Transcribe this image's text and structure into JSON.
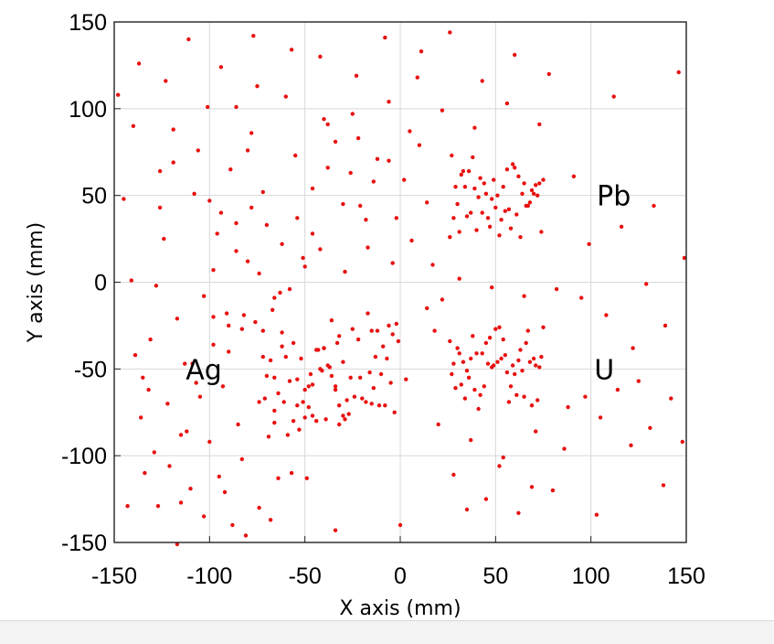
{
  "chart_data": {
    "type": "scatter",
    "title": "",
    "xlabel": "X axis (mm)",
    "ylabel": "Y axis (mm)",
    "xlim": [
      -150,
      150
    ],
    "ylim": [
      -150,
      150
    ],
    "xticks": [
      -150,
      -100,
      -50,
      0,
      50,
      100,
      150
    ],
    "yticks": [
      -150,
      -100,
      -50,
      0,
      50,
      100,
      150
    ],
    "grid": true,
    "marker_color": "#e81010",
    "annotations": [
      {
        "text": "Pb",
        "x": 112,
        "y": 50
      },
      {
        "text": "Ag",
        "x": -103,
        "y": -50
      },
      {
        "text": "U",
        "x": 107,
        "y": -50
      }
    ],
    "clusters": [
      {
        "label": "Pb",
        "center": [
          50,
          50
        ],
        "extent": [
          [
            25,
            25
          ],
          [
            75,
            75
          ]
        ]
      },
      {
        "label": "U",
        "center": [
          50,
          -45
        ],
        "extent": [
          [
            25,
            -75
          ],
          [
            75,
            -25
          ]
        ]
      },
      {
        "label": "Ag",
        "center": [
          -45,
          -50
        ],
        "extent": [
          [
            -75,
            -85
          ],
          [
            -25,
            -25
          ]
        ]
      }
    ],
    "points": [
      [
        -148,
        108
      ],
      [
        -143,
        -129
      ],
      [
        -141,
        1
      ],
      [
        -139,
        -42
      ],
      [
        -136,
        -78
      ],
      [
        -134,
        -110
      ],
      [
        -131,
        -33
      ],
      [
        -129,
        -98
      ],
      [
        -127,
        -129
      ],
      [
        -126,
        43
      ],
      [
        -124,
        25
      ],
      [
        -122,
        -70
      ],
      [
        -121,
        -106
      ],
      [
        -119,
        69
      ],
      [
        -117,
        -21
      ],
      [
        -115,
        -127
      ],
      [
        -113,
        -47
      ],
      [
        -112,
        -86
      ],
      [
        -110,
        -119
      ],
      [
        -108,
        51
      ],
      [
        -107,
        -58
      ],
      [
        -105,
        -66
      ],
      [
        -103,
        -8
      ],
      [
        -101,
        101
      ],
      [
        -100,
        -92
      ],
      [
        -98,
        7
      ],
      [
        -96,
        28
      ],
      [
        -95,
        -112
      ],
      [
        -93,
        -60
      ],
      [
        -91,
        -18
      ],
      [
        -90,
        -40
      ],
      [
        -88,
        -140
      ],
      [
        -86,
        101
      ],
      [
        -85,
        -82
      ],
      [
        -83,
        -27
      ],
      [
        -81,
        -146
      ],
      [
        -80,
        76
      ],
      [
        -78,
        86
      ],
      [
        -76,
        -23
      ],
      [
        -74,
        -130
      ],
      [
        -72,
        -43
      ],
      [
        -71,
        -67
      ],
      [
        -69,
        -89
      ],
      [
        -67,
        -16
      ],
      [
        -66,
        -55
      ],
      [
        -64,
        -113
      ],
      [
        -62,
        -37
      ],
      [
        -61,
        -69
      ],
      [
        -59,
        -88
      ],
      [
        -57,
        -110
      ],
      [
        -56,
        -80
      ],
      [
        -54,
        -56
      ],
      [
        -53,
        -85
      ],
      [
        -51,
        -69
      ],
      [
        -50,
        -78
      ],
      [
        -48,
        -72
      ],
      [
        -47,
        -53
      ],
      [
        -46,
        -77
      ],
      [
        -44,
        -80
      ],
      [
        -43,
        -39
      ],
      [
        -41,
        -51
      ],
      [
        -40,
        -38
      ],
      [
        -39,
        -79
      ],
      [
        -37,
        -49
      ],
      [
        -36,
        -22
      ],
      [
        -34,
        -62
      ],
      [
        -33,
        -35
      ],
      [
        -32,
        -71
      ],
      [
        -30,
        -77
      ],
      [
        -29,
        -79
      ],
      [
        -27,
        -76
      ],
      [
        -25,
        -27
      ],
      [
        -24,
        -66
      ],
      [
        -22,
        -33
      ],
      [
        -21,
        -55
      ],
      [
        -20,
        -67
      ],
      [
        -18,
        -69
      ],
      [
        -17,
        -18
      ],
      [
        -16,
        -52
      ],
      [
        -15,
        -28
      ],
      [
        -14,
        -61
      ],
      [
        -13,
        -43
      ],
      [
        -12,
        -28
      ],
      [
        -11,
        -71
      ],
      [
        -10,
        -53
      ],
      [
        -9,
        -37
      ],
      [
        -8,
        -71
      ],
      [
        -7,
        -44
      ],
      [
        -6,
        -25
      ],
      [
        -5,
        -58
      ],
      [
        -4,
        -30
      ],
      [
        -3,
        -75
      ],
      [
        -2,
        -24
      ],
      [
        -1,
        -34
      ],
      [
        26,
        26
      ],
      [
        27,
        73
      ],
      [
        28,
        37
      ],
      [
        29,
        55
      ],
      [
        30,
        45
      ],
      [
        31,
        29
      ],
      [
        32,
        62
      ],
      [
        33,
        64
      ],
      [
        34,
        55
      ],
      [
        35,
        38
      ],
      [
        36,
        64
      ],
      [
        37,
        40
      ],
      [
        38,
        72
      ],
      [
        39,
        54
      ],
      [
        40,
        30
      ],
      [
        41,
        49
      ],
      [
        42,
        60
      ],
      [
        43,
        40
      ],
      [
        44,
        57
      ],
      [
        45,
        51
      ],
      [
        46,
        37
      ],
      [
        47,
        32
      ],
      [
        48,
        48
      ],
      [
        49,
        59
      ],
      [
        50,
        43
      ],
      [
        51,
        50
      ],
      [
        52,
        27
      ],
      [
        53,
        36
      ],
      [
        54,
        55
      ],
      [
        55,
        41
      ],
      [
        56,
        65
      ],
      [
        57,
        42
      ],
      [
        58,
        31
      ],
      [
        59,
        68
      ],
      [
        60,
        66
      ],
      [
        61,
        39
      ],
      [
        62,
        61
      ],
      [
        63,
        26
      ],
      [
        64,
        51
      ],
      [
        65,
        57
      ],
      [
        66,
        44
      ],
      [
        67,
        44
      ],
      [
        68,
        46
      ],
      [
        69,
        53
      ],
      [
        70,
        51
      ],
      [
        71,
        56
      ],
      [
        72,
        50
      ],
      [
        73,
        57
      ],
      [
        74,
        29
      ],
      [
        75,
        59
      ],
      [
        26,
        -34
      ],
      [
        27,
        -53
      ],
      [
        28,
        -47
      ],
      [
        29,
        -61
      ],
      [
        30,
        -38
      ],
      [
        31,
        -41
      ],
      [
        32,
        -59
      ],
      [
        33,
        -46
      ],
      [
        34,
        -67
      ],
      [
        35,
        -51
      ],
      [
        36,
        -55
      ],
      [
        37,
        -44
      ],
      [
        38,
        -31
      ],
      [
        39,
        -62
      ],
      [
        40,
        -41
      ],
      [
        41,
        -73
      ],
      [
        42,
        -65
      ],
      [
        43,
        -41
      ],
      [
        44,
        -60
      ],
      [
        45,
        -35
      ],
      [
        46,
        -47
      ],
      [
        47,
        -32
      ],
      [
        48,
        -49
      ],
      [
        49,
        -48
      ],
      [
        50,
        -27
      ],
      [
        51,
        -46
      ],
      [
        52,
        -26
      ],
      [
        53,
        -44
      ],
      [
        54,
        -33
      ],
      [
        55,
        -42
      ],
      [
        56,
        -52
      ],
      [
        57,
        -69
      ],
      [
        58,
        -60
      ],
      [
        59,
        -48
      ],
      [
        60,
        -53
      ],
      [
        61,
        -65
      ],
      [
        62,
        -45
      ],
      [
        63,
        -39
      ],
      [
        64,
        -51
      ],
      [
        65,
        -66
      ],
      [
        66,
        -35
      ],
      [
        67,
        -28
      ],
      [
        68,
        -46
      ],
      [
        69,
        -71
      ],
      [
        70,
        -44
      ],
      [
        71,
        -48
      ],
      [
        72,
        -68
      ],
      [
        73,
        -49
      ],
      [
        74,
        -43
      ],
      [
        75,
        -26
      ],
      [
        -74,
        -69
      ],
      [
        -72,
        -28
      ],
      [
        -70,
        -54
      ],
      [
        -68,
        -45
      ],
      [
        -66,
        -74
      ],
      [
        -64,
        -64
      ],
      [
        -62,
        -29
      ],
      [
        -60,
        -43
      ],
      [
        -58,
        -57
      ],
      [
        -56,
        -35
      ],
      [
        -54,
        -71
      ],
      [
        -52,
        -44
      ],
      [
        -50,
        -62
      ],
      [
        -48,
        -60
      ],
      [
        -46,
        -59
      ],
      [
        -44,
        -39
      ],
      [
        -42,
        -50
      ],
      [
        -40,
        -38
      ],
      [
        -38,
        -48
      ],
      [
        -36,
        -54
      ],
      [
        -34,
        -60
      ],
      [
        -32,
        -31
      ],
      [
        -30,
        -46
      ],
      [
        -28,
        -68
      ],
      [
        -26,
        -55
      ],
      [
        -145,
        48
      ],
      [
        -137,
        126
      ],
      [
        -128,
        -2
      ],
      [
        -119,
        88
      ],
      [
        -111,
        140
      ],
      [
        -103,
        -135
      ],
      [
        -94,
        124
      ],
      [
        -86,
        34
      ],
      [
        -77,
        142
      ],
      [
        -68,
        -137
      ],
      [
        -60,
        107
      ],
      [
        -51,
        14
      ],
      [
        -42,
        130
      ],
      [
        -34,
        -143
      ],
      [
        -25,
        97
      ],
      [
        -17,
        20
      ],
      [
        -8,
        141
      ],
      [
        0,
        -140
      ],
      [
        9,
        118
      ],
      [
        17,
        10
      ],
      [
        26,
        144
      ],
      [
        35,
        -131
      ],
      [
        43,
        116
      ],
      [
        52,
        -106
      ],
      [
        60,
        131
      ],
      [
        69,
        -118
      ],
      [
        78,
        120
      ],
      [
        86,
        -96
      ],
      [
        95,
        -9
      ],
      [
        103,
        -134
      ],
      [
        112,
        107
      ],
      [
        121,
        -94
      ],
      [
        129,
        -1
      ],
      [
        138,
        -117
      ],
      [
        146,
        121
      ],
      [
        -140,
        90
      ],
      [
        -132,
        -62
      ],
      [
        -123,
        116
      ],
      [
        -115,
        -88
      ],
      [
        -106,
        76
      ],
      [
        -98,
        -20
      ],
      [
        -89,
        65
      ],
      [
        -80,
        12
      ],
      [
        -72,
        52
      ],
      [
        -63,
        -6
      ],
      [
        -55,
        73
      ],
      [
        -46,
        28
      ],
      [
        -38,
        91
      ],
      [
        -29,
        6
      ],
      [
        -21,
        44
      ],
      [
        -12,
        71
      ],
      [
        -4,
        11
      ],
      [
        5,
        87
      ],
      [
        14,
        -15
      ],
      [
        22,
        99
      ],
      [
        31,
        2
      ],
      [
        39,
        89
      ],
      [
        48,
        -3
      ],
      [
        56,
        103
      ],
      [
        65,
        -8
      ],
      [
        73,
        91
      ],
      [
        82,
        -4
      ],
      [
        91,
        61
      ],
      [
        99,
        22
      ],
      [
        108,
        -19
      ],
      [
        116,
        32
      ],
      [
        125,
        -57
      ],
      [
        133,
        44
      ],
      [
        142,
        -67
      ],
      [
        149,
        14
      ],
      [
        -135,
        -55
      ],
      [
        -126,
        64
      ],
      [
        -117,
        -151
      ],
      [
        -109,
        -47
      ],
      [
        -100,
        47
      ],
      [
        -92,
        -121
      ],
      [
        -83,
        -102
      ],
      [
        -75,
        113
      ],
      [
        -66,
        -81
      ],
      [
        -57,
        134
      ],
      [
        -49,
        -113
      ],
      [
        -40,
        94
      ],
      [
        -32,
        -82
      ],
      [
        -23,
        119
      ],
      [
        -15,
        -70
      ],
      [
        -6,
        104
      ],
      [
        3,
        -56
      ],
      [
        11,
        133
      ],
      [
        20,
        -82
      ],
      [
        28,
        -111
      ],
      [
        37,
        -91
      ],
      [
        45,
        -125
      ],
      [
        54,
        -101
      ],
      [
        62,
        -133
      ],
      [
        71,
        -86
      ],
      [
        80,
        -120
      ],
      [
        88,
        -72
      ],
      [
        97,
        -66
      ],
      [
        105,
        -78
      ],
      [
        114,
        -62
      ],
      [
        122,
        -38
      ],
      [
        131,
        -84
      ],
      [
        139,
        -25
      ],
      [
        148,
        -92
      ],
      [
        -6,
        70
      ],
      [
        -2,
        37
      ],
      [
        2,
        59
      ],
      [
        6,
        24
      ],
      [
        10,
        79
      ],
      [
        14,
        46
      ],
      [
        18,
        -28
      ],
      [
        22,
        -10
      ],
      [
        -14,
        58
      ],
      [
        -18,
        36
      ],
      [
        -22,
        83
      ],
      [
        -26,
        63
      ],
      [
        -30,
        45
      ],
      [
        -34,
        81
      ],
      [
        -38,
        66
      ],
      [
        -42,
        19
      ],
      [
        -46,
        54
      ],
      [
        -50,
        9
      ],
      [
        -54,
        37
      ],
      [
        -58,
        -4
      ],
      [
        -62,
        22
      ],
      [
        -66,
        -9
      ],
      [
        -70,
        33
      ],
      [
        -74,
        5
      ],
      [
        -78,
        43
      ],
      [
        -82,
        -19
      ],
      [
        -86,
        18
      ],
      [
        -90,
        -25
      ],
      [
        -94,
        40
      ],
      [
        -98,
        -36
      ]
    ]
  }
}
